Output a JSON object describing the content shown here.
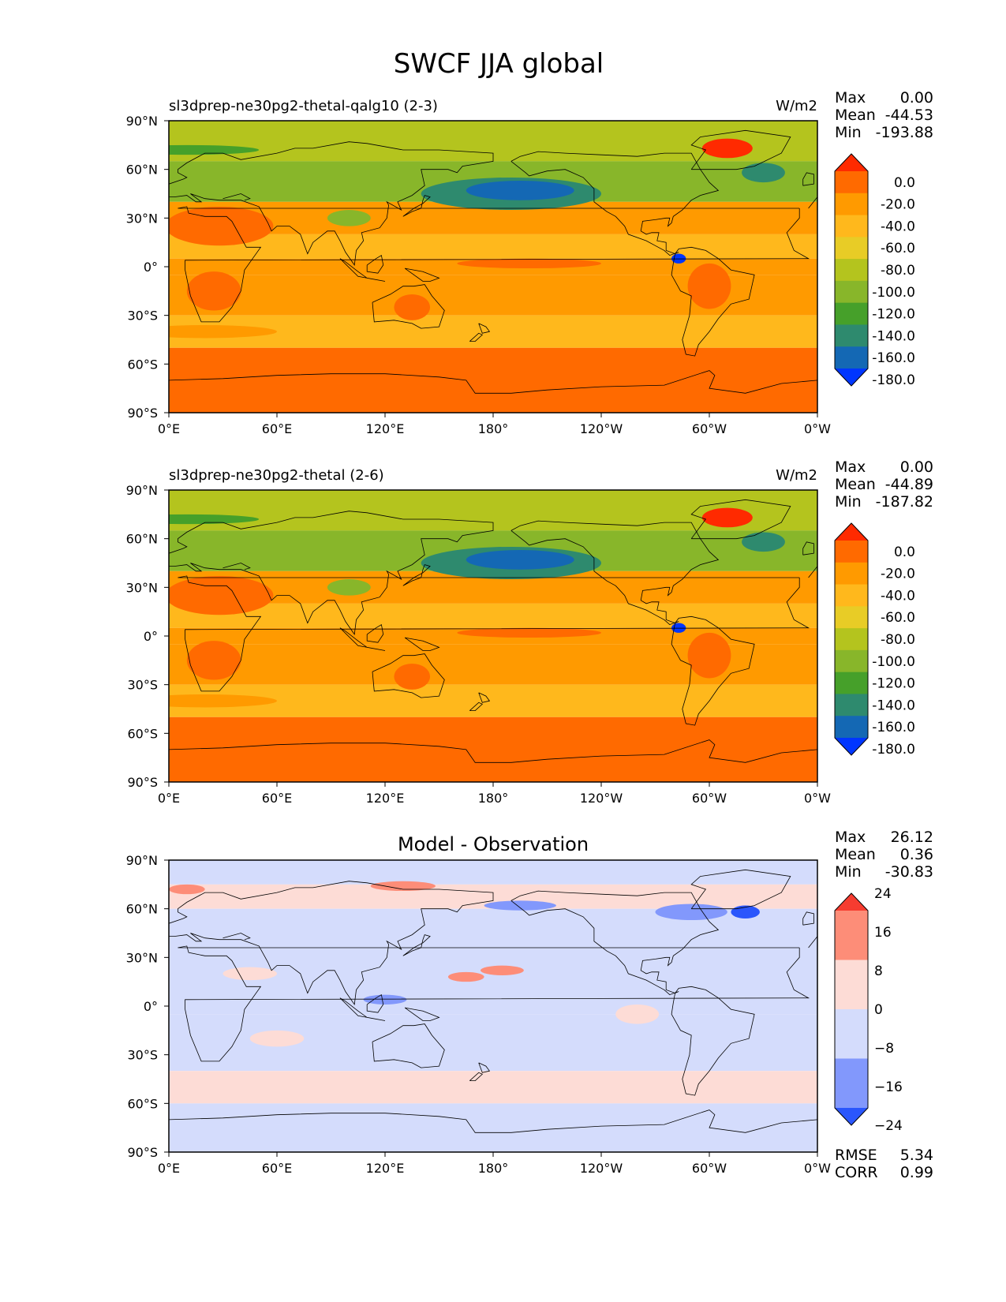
{
  "title": "SWCF JJA global",
  "lon_ticks": [
    "0°E",
    "60°E",
    "120°E",
    "180°",
    "120°W",
    "60°W",
    "0°W"
  ],
  "lat_ticks": [
    "90°N",
    "60°N",
    "30°N",
    "0°",
    "30°S",
    "60°S",
    "90°S"
  ],
  "stat_keys": {
    "max": "Max",
    "mean": "Mean",
    "min": "Min",
    "rmse": "RMSE",
    "corr": "CORR"
  },
  "panels": [
    {
      "title_left": "sl3dprep-ne30pg2-thetal-qalg10 (2-3)",
      "title_center": "",
      "units": "W/m2",
      "stats": {
        "max": "0.00",
        "mean": "-44.53",
        "min": "-193.88"
      },
      "colorbar": {
        "labels": [
          "0.0",
          "-20.0",
          "-40.0",
          "-60.0",
          "-80.0",
          "-100.0",
          "-120.0",
          "-140.0",
          "-160.0",
          "-180.0"
        ],
        "colors": [
          "#ff2a00",
          "#ff6a00",
          "#ff9a00",
          "#ffb81c",
          "#e8cc26",
          "#b4c41e",
          "#88b62a",
          "#46a02a",
          "#2e8a6e",
          "#1468b4",
          "#0036ff"
        ]
      }
    },
    {
      "title_left": "sl3dprep-ne30pg2-thetal (2-6)",
      "title_center": "",
      "units": "W/m2",
      "stats": {
        "max": "0.00",
        "mean": "-44.89",
        "min": "-187.82"
      },
      "colorbar": {
        "labels": [
          "0.0",
          "-20.0",
          "-40.0",
          "-60.0",
          "-80.0",
          "-100.0",
          "-120.0",
          "-140.0",
          "-160.0",
          "-180.0"
        ],
        "colors": [
          "#ff2a00",
          "#ff6a00",
          "#ff9a00",
          "#ffb81c",
          "#e8cc26",
          "#b4c41e",
          "#88b62a",
          "#46a02a",
          "#2e8a6e",
          "#1468b4",
          "#0036ff"
        ]
      }
    },
    {
      "title_left": "",
      "title_center": "Model - Observation",
      "units": "",
      "stats": {
        "max": "26.12",
        "mean": "0.36",
        "min": "-30.83"
      },
      "colorbar": {
        "labels": [
          "24",
          "16",
          "8",
          "0",
          "−8",
          "−16",
          "−24"
        ],
        "colors": [
          "#f63c30",
          "#fd8d78",
          "#fddcd6",
          "#d4dcfc",
          "#8298fc",
          "#2a56fc"
        ]
      },
      "rmse": "5.34",
      "corr": "0.99"
    }
  ]
}
